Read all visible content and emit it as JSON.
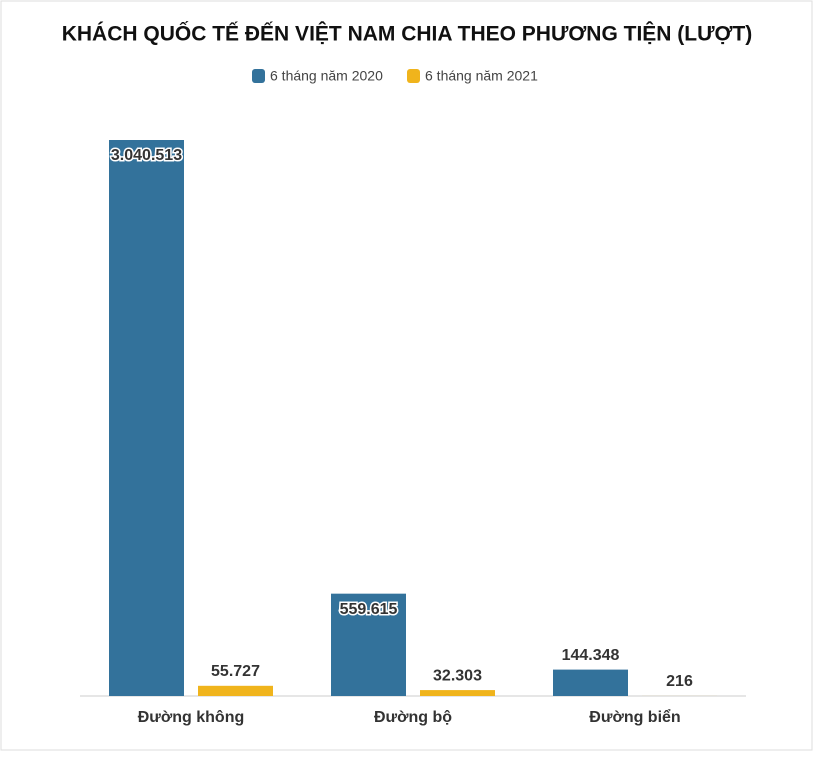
{
  "chart_data": {
    "type": "bar",
    "title": "KHÁCH QUỐC TẾ ĐẾN VIỆT NAM CHIA THEO PHƯƠNG TIỆN (LƯỢT)",
    "categories": [
      "Đường không",
      "Đường bộ",
      "Đường biển"
    ],
    "series": [
      {
        "name": "6 tháng năm 2020",
        "color": "#33729b",
        "values": [
          3040513,
          559615,
          144348
        ],
        "value_labels": [
          "3.040.513",
          "559.615",
          "144.348"
        ]
      },
      {
        "name": "6 tháng năm 2021",
        "color": "#f0b41c",
        "values": [
          55727,
          32303,
          216
        ],
        "value_labels": [
          "55.727",
          "32.303",
          "216"
        ]
      }
    ]
  }
}
